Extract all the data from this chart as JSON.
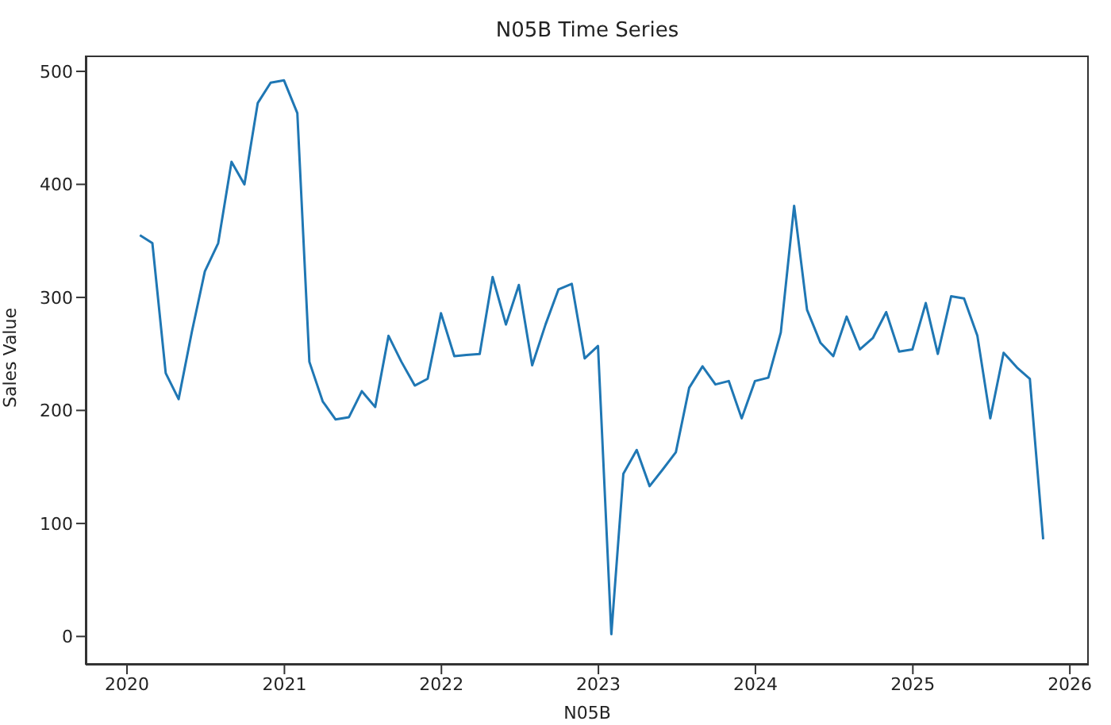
{
  "chart_data": {
    "type": "line",
    "title": "N05B Time Series",
    "xlabel": "N05B",
    "ylabel": "Sales Value",
    "x": [
      "2020-01-31",
      "2020-02-29",
      "2020-03-31",
      "2020-04-30",
      "2020-05-31",
      "2020-06-30",
      "2020-07-31",
      "2020-08-31",
      "2020-09-30",
      "2020-10-31",
      "2020-11-30",
      "2020-12-31",
      "2021-01-31",
      "2021-02-28",
      "2021-03-31",
      "2021-04-30",
      "2021-05-31",
      "2021-06-30",
      "2021-07-31",
      "2021-08-31",
      "2021-09-30",
      "2021-10-31",
      "2021-11-30",
      "2021-12-31",
      "2022-01-31",
      "2022-02-28",
      "2022-03-31",
      "2022-04-30",
      "2022-05-31",
      "2022-06-30",
      "2022-07-31",
      "2022-08-31",
      "2022-09-30",
      "2022-10-31",
      "2022-11-30",
      "2022-12-31",
      "2023-01-31",
      "2023-02-28",
      "2023-03-31",
      "2023-04-30",
      "2023-05-31",
      "2023-06-30",
      "2023-07-31",
      "2023-08-31",
      "2023-09-30",
      "2023-10-31",
      "2023-11-30",
      "2023-12-31",
      "2024-01-31",
      "2024-02-29",
      "2024-03-31",
      "2024-04-30",
      "2024-05-31",
      "2024-06-30",
      "2024-07-31",
      "2024-08-31",
      "2024-09-30",
      "2024-10-31",
      "2024-11-30",
      "2024-12-31",
      "2025-01-31",
      "2025-02-28",
      "2025-03-31",
      "2025-04-30",
      "2025-05-31",
      "2025-06-30",
      "2025-07-31",
      "2025-08-31",
      "2025-09-30",
      "2025-10-31"
    ],
    "series": [
      {
        "color": "#1f77b4",
        "values": [
          355,
          348,
          233,
          210,
          270,
          323,
          348,
          420,
          400,
          472,
          490,
          492,
          463,
          243,
          208,
          192,
          194,
          217,
          203,
          266,
          243,
          222,
          228,
          286,
          248,
          249,
          250,
          318,
          276,
          311,
          240,
          276,
          307,
          312,
          246,
          257,
          2,
          144,
          165,
          133,
          148,
          163,
          220,
          239,
          223,
          226,
          193,
          226,
          229,
          269,
          381,
          289,
          260,
          248,
          283,
          254,
          264,
          287,
          252,
          254,
          295,
          250,
          301,
          299,
          266,
          193,
          251,
          238,
          228,
          86
        ]
      }
    ],
    "xlim": [
      "2019-09-27",
      "2026-02-14"
    ],
    "xticks": [
      "2020",
      "2021",
      "2022",
      "2023",
      "2024",
      "2025",
      "2026"
    ],
    "ylim": [
      -25,
      514
    ],
    "yticks": [
      0,
      100,
      200,
      300,
      400,
      500
    ],
    "grid": false,
    "legend": false,
    "marker": "none",
    "line_style": "solid"
  }
}
